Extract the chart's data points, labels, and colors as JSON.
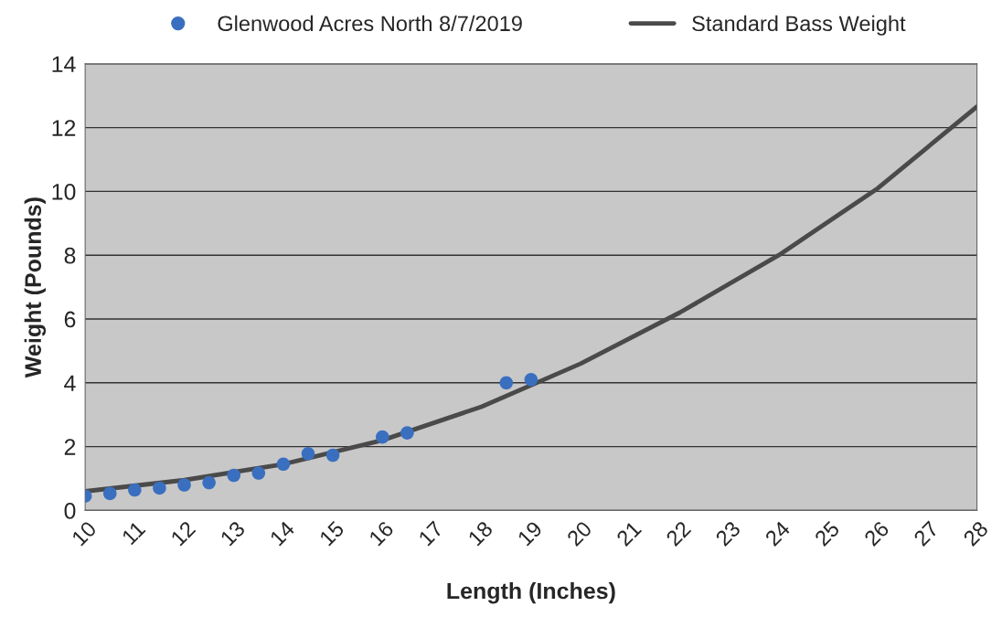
{
  "chart_data": {
    "type": "scatter",
    "xlabel": "Length (Inches)",
    "ylabel": "Weight (Pounds)",
    "xlim": [
      10,
      28
    ],
    "xticks": [
      10,
      11,
      12,
      13,
      14,
      15,
      16,
      17,
      18,
      19,
      20,
      21,
      22,
      23,
      24,
      25,
      26,
      27,
      28
    ],
    "ylim": [
      0,
      14
    ],
    "yticks": [
      0,
      2,
      4,
      6,
      8,
      10,
      12,
      14
    ],
    "grid": "y",
    "legend": "top",
    "series": [
      {
        "name": "Glenwood Acres North 8/7/2019",
        "marker": "circle",
        "color": "#3a6fc0",
        "x": [
          10,
          10.5,
          11,
          11.5,
          12,
          12.5,
          13,
          13.5,
          14,
          14.5,
          15,
          16,
          16.5,
          18.5,
          19
        ],
        "values": [
          0.45,
          0.53,
          0.64,
          0.7,
          0.8,
          0.87,
          1.1,
          1.17,
          1.45,
          1.78,
          1.73,
          2.3,
          2.43,
          4.0,
          4.1
        ]
      },
      {
        "name": "Standard Bass Weight",
        "type": "line",
        "color": "#4a4a4a",
        "x": [
          10,
          12,
          14,
          16,
          18,
          20,
          22,
          24,
          26,
          28
        ],
        "values": [
          0.6,
          0.95,
          1.45,
          2.2,
          3.25,
          4.6,
          6.2,
          8.0,
          10.1,
          12.66
        ]
      }
    ]
  }
}
